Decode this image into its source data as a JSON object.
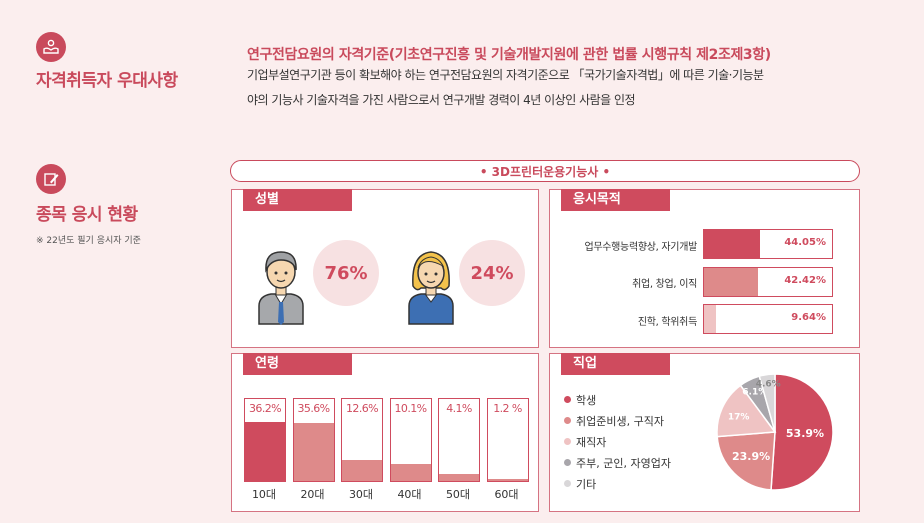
{
  "section1": {
    "title": "자격취득자 우대사항",
    "lead": "연구전담요원의 자격기준(기초연구진흥 및 기술개발지원에 관한 법률 시행규칙 제2조제3항)",
    "line1": "기업부설연구기관 등이 확보해야 하는 연구전담요원의 자격기준으로 「국가기술자격법」에 따른 기술·기능분",
    "line2": "야의 기능사 기술자격을 가진 사람으로서 연구개발 경력이 4년 이상인 사람을 인정"
  },
  "section2": {
    "title": "종목 응시 현황",
    "note": "※ 22년도 필기 응시자 기준",
    "cert": "• 3D프린터운용기능사 •"
  },
  "colors": {
    "accent": "#cf4b5e",
    "mid": "#de8a8a",
    "light": "#efc3c3",
    "gray": "#a8a6ab",
    "lightgray": "#d9d7d9"
  },
  "icons": {
    "section1": "hands-person-icon",
    "section2": "pencil-note-icon",
    "male": "male-avatar-icon",
    "female": "female-avatar-icon"
  },
  "chart_data": [
    {
      "type": "pie",
      "title": "성별",
      "labels": [
        "남",
        "여"
      ],
      "values": [
        76,
        24
      ],
      "display": [
        "76%",
        "24%"
      ]
    },
    {
      "type": "bar",
      "orientation": "horizontal",
      "title": "응시목적",
      "categories": [
        "업무수행능력향상, 자기개발",
        "취업, 창업, 이직",
        "진학, 학위취득"
      ],
      "values": [
        44.05,
        42.42,
        9.64
      ],
      "display": [
        "44.05%",
        "42.42%",
        "9.64%"
      ],
      "xlim": [
        0,
        100
      ]
    },
    {
      "type": "bar",
      "title": "연령",
      "categories": [
        "10대",
        "20대",
        "30대",
        "40대",
        "50대",
        "60대"
      ],
      "values": [
        36.2,
        35.6,
        12.6,
        10.1,
        4.1,
        1.2
      ],
      "display": [
        "36.2%",
        "35.6%",
        "12.6%",
        "10.1%",
        "4.1%",
        "1.2 %"
      ],
      "ylim": [
        0,
        50
      ]
    },
    {
      "type": "pie",
      "title": "직업",
      "labels": [
        "학생",
        "취업준비생, 구직자",
        "재직자",
        "주부, 군인, 자영업자",
        "기타"
      ],
      "values": [
        53.9,
        23.9,
        17,
        6.1,
        4.6
      ],
      "display": [
        "53.9%",
        "23.9%",
        "17%",
        "6.1%",
        "4.6%"
      ],
      "colors": [
        "#cf4b5e",
        "#de8a8a",
        "#efc3c3",
        "#a8a6ab",
        "#d9d7d9"
      ],
      "legend": "left"
    }
  ]
}
